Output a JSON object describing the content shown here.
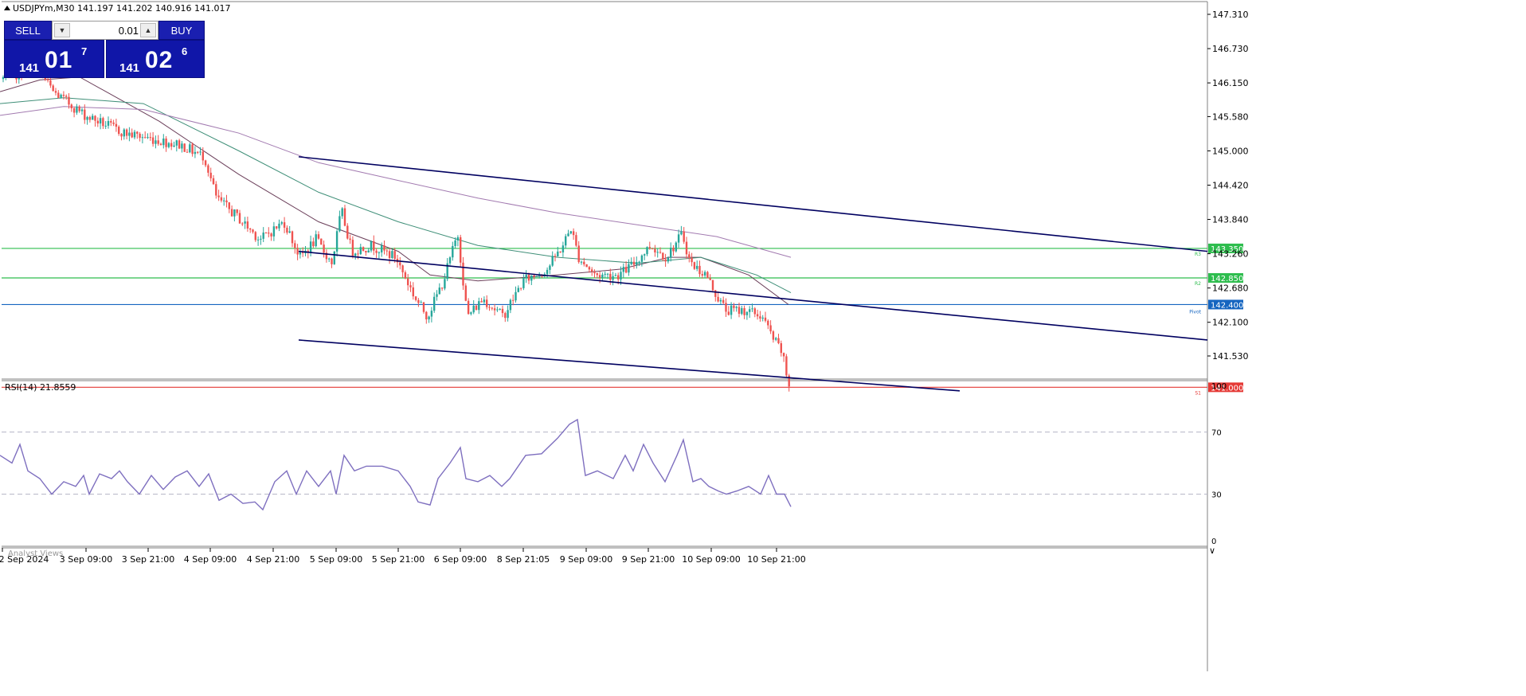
{
  "window": {
    "header_text": "USDJPYm,M30  141.197 141.202 140.916 141.017",
    "rsi_label": "RSI(14) 21.8559",
    "analyst_views": "Analyst Views"
  },
  "trade_panel": {
    "sell_label": "SELL",
    "buy_label": "BUY",
    "lot": "0.01",
    "sell_price_prefix": "141",
    "sell_price_big": "01",
    "sell_price_sup": "7",
    "buy_price_prefix": "141",
    "buy_price_big": "02",
    "buy_price_sup": "6"
  },
  "colors": {
    "bull": "#26a69a",
    "bear": "#ef5350",
    "level_green": "#2ebd4e",
    "level_blue": "#1565c0",
    "level_red": "#e53935",
    "channel": "#000060",
    "rsi_line": "#7e6fbf"
  },
  "chart_data": {
    "type": "candlestick",
    "symbol": "USDJPYm",
    "timeframe": "M30",
    "ylim": [
      140.95,
      147.6
    ],
    "y_ticks": [
      "147.310",
      "146.730",
      "146.150",
      "145.580",
      "145.000",
      "144.420",
      "143.840",
      "143.260",
      "142.680",
      "142.100",
      "141.530"
    ],
    "x_ticks": [
      "2 Sep 2024",
      "3 Sep 09:00",
      "3 Sep 21:00",
      "4 Sep 09:00",
      "4 Sep 21:00",
      "5 Sep 09:00",
      "5 Sep 21:00",
      "6 Sep 09:00",
      "8 Sep 21:05",
      "9 Sep 09:00",
      "9 Sep 21:00",
      "10 Sep 09:00",
      "10 Sep 21:00"
    ],
    "price_path": [
      [
        0,
        146.2
      ],
      [
        50,
        146.4
      ],
      [
        70,
        146.0
      ],
      [
        110,
        145.6
      ],
      [
        160,
        145.3
      ],
      [
        230,
        145.1
      ],
      [
        260,
        144.9
      ],
      [
        275,
        144.2
      ],
      [
        300,
        143.9
      ],
      [
        330,
        143.5
      ],
      [
        360,
        143.8
      ],
      [
        380,
        143.2
      ],
      [
        400,
        143.5
      ],
      [
        420,
        143.1
      ],
      [
        432,
        144.0
      ],
      [
        445,
        143.3
      ],
      [
        470,
        143.4
      ],
      [
        500,
        143.2
      ],
      [
        525,
        142.5
      ],
      [
        540,
        142.2
      ],
      [
        560,
        142.8
      ],
      [
        578,
        143.6
      ],
      [
        590,
        142.2
      ],
      [
        610,
        142.5
      ],
      [
        635,
        142.2
      ],
      [
        660,
        142.8
      ],
      [
        690,
        143.0
      ],
      [
        710,
        143.4
      ],
      [
        720,
        143.7
      ],
      [
        730,
        143.2
      ],
      [
        750,
        142.9
      ],
      [
        780,
        142.9
      ],
      [
        800,
        143.1
      ],
      [
        820,
        143.4
      ],
      [
        840,
        143.2
      ],
      [
        860,
        143.6
      ],
      [
        870,
        143.1
      ],
      [
        890,
        142.9
      ],
      [
        905,
        142.5
      ],
      [
        915,
        142.3
      ],
      [
        940,
        142.3
      ],
      [
        960,
        142.2
      ],
      [
        975,
        141.8
      ],
      [
        985,
        141.6
      ],
      [
        993,
        141.05
      ]
    ],
    "moving_averages": [
      {
        "color": "#6b3f5a",
        "points": [
          [
            0,
            146.0
          ],
          [
            50,
            146.2
          ],
          [
            100,
            146.25
          ],
          [
            200,
            145.5
          ],
          [
            300,
            144.6
          ],
          [
            400,
            143.8
          ],
          [
            500,
            143.3
          ],
          [
            540,
            142.9
          ],
          [
            600,
            142.8
          ],
          [
            700,
            142.9
          ],
          [
            780,
            143.0
          ],
          [
            840,
            143.2
          ],
          [
            880,
            143.2
          ],
          [
            940,
            142.9
          ],
          [
            990,
            142.4
          ]
        ]
      },
      {
        "color": "#3f8f78",
        "points": [
          [
            0,
            145.8
          ],
          [
            80,
            145.9
          ],
          [
            180,
            145.8
          ],
          [
            300,
            145.0
          ],
          [
            400,
            144.3
          ],
          [
            500,
            143.8
          ],
          [
            600,
            143.4
          ],
          [
            700,
            143.2
          ],
          [
            800,
            143.1
          ],
          [
            880,
            143.2
          ],
          [
            950,
            142.9
          ],
          [
            993,
            142.6
          ]
        ]
      },
      {
        "color": "#a27ab0",
        "points": [
          [
            0,
            145.6
          ],
          [
            80,
            145.75
          ],
          [
            180,
            145.7
          ],
          [
            300,
            145.3
          ],
          [
            400,
            144.8
          ],
          [
            500,
            144.5
          ],
          [
            600,
            144.2
          ],
          [
            700,
            143.95
          ],
          [
            800,
            143.75
          ],
          [
            900,
            143.55
          ],
          [
            993,
            143.2
          ]
        ]
      }
    ],
    "channel_lines": [
      {
        "from": [
          375,
          144.9
        ],
        "to": [
          1516,
          143.3
        ]
      },
      {
        "from": [
          375,
          143.3
        ],
        "to": [
          1516,
          141.8
        ]
      },
      {
        "from": [
          375,
          141.8
        ],
        "to": [
          1205,
          140.94
        ]
      }
    ],
    "levels": [
      {
        "price": 143.35,
        "label": "143.350",
        "tag": "R3",
        "color": "#2ebd4e"
      },
      {
        "price": 142.85,
        "label": "142.850",
        "tag": "R2",
        "color": "#2ebd4e"
      },
      {
        "price": 142.4,
        "label": "142.400",
        "tag": "Pivot",
        "color": "#1565c0"
      },
      {
        "price": 141.0,
        "label": "141.000",
        "tag": "S1",
        "color": "#e53935"
      }
    ],
    "rsi": {
      "period": 14,
      "value": 21.8559,
      "ylim": [
        0,
        100
      ],
      "y_ticks": [
        "100",
        "70",
        "30",
        "0"
      ],
      "levels": [
        70,
        30
      ],
      "path": [
        [
          0,
          55
        ],
        [
          15,
          50
        ],
        [
          25,
          62
        ],
        [
          35,
          45
        ],
        [
          50,
          40
        ],
        [
          65,
          30
        ],
        [
          80,
          38
        ],
        [
          95,
          35
        ],
        [
          105,
          42
        ],
        [
          112,
          30
        ],
        [
          125,
          43
        ],
        [
          140,
          40
        ],
        [
          150,
          45
        ],
        [
          160,
          38
        ],
        [
          175,
          30
        ],
        [
          190,
          42
        ],
        [
          205,
          33
        ],
        [
          220,
          41
        ],
        [
          235,
          45
        ],
        [
          250,
          35
        ],
        [
          262,
          43
        ],
        [
          275,
          26
        ],
        [
          290,
          30
        ],
        [
          305,
          24
        ],
        [
          320,
          25
        ],
        [
          330,
          20
        ],
        [
          345,
          38
        ],
        [
          360,
          45
        ],
        [
          372,
          30
        ],
        [
          385,
          45
        ],
        [
          400,
          35
        ],
        [
          415,
          45
        ],
        [
          422,
          30
        ],
        [
          432,
          55
        ],
        [
          445,
          45
        ],
        [
          460,
          48
        ],
        [
          480,
          48
        ],
        [
          500,
          45
        ],
        [
          515,
          35
        ],
        [
          525,
          25
        ],
        [
          540,
          23
        ],
        [
          550,
          40
        ],
        [
          565,
          50
        ],
        [
          578,
          60
        ],
        [
          585,
          40
        ],
        [
          600,
          38
        ],
        [
          615,
          42
        ],
        [
          630,
          35
        ],
        [
          640,
          40
        ],
        [
          660,
          55
        ],
        [
          680,
          56
        ],
        [
          700,
          66
        ],
        [
          715,
          75
        ],
        [
          725,
          78
        ],
        [
          735,
          42
        ],
        [
          750,
          45
        ],
        [
          770,
          40
        ],
        [
          785,
          55
        ],
        [
          795,
          45
        ],
        [
          808,
          62
        ],
        [
          820,
          50
        ],
        [
          835,
          38
        ],
        [
          850,
          55
        ],
        [
          858,
          65
        ],
        [
          870,
          38
        ],
        [
          880,
          40
        ],
        [
          890,
          35
        ],
        [
          902,
          32
        ],
        [
          912,
          30
        ],
        [
          925,
          32
        ],
        [
          940,
          35
        ],
        [
          955,
          30
        ],
        [
          965,
          42
        ],
        [
          975,
          30
        ],
        [
          985,
          30
        ],
        [
          993,
          21.9
        ]
      ]
    }
  }
}
